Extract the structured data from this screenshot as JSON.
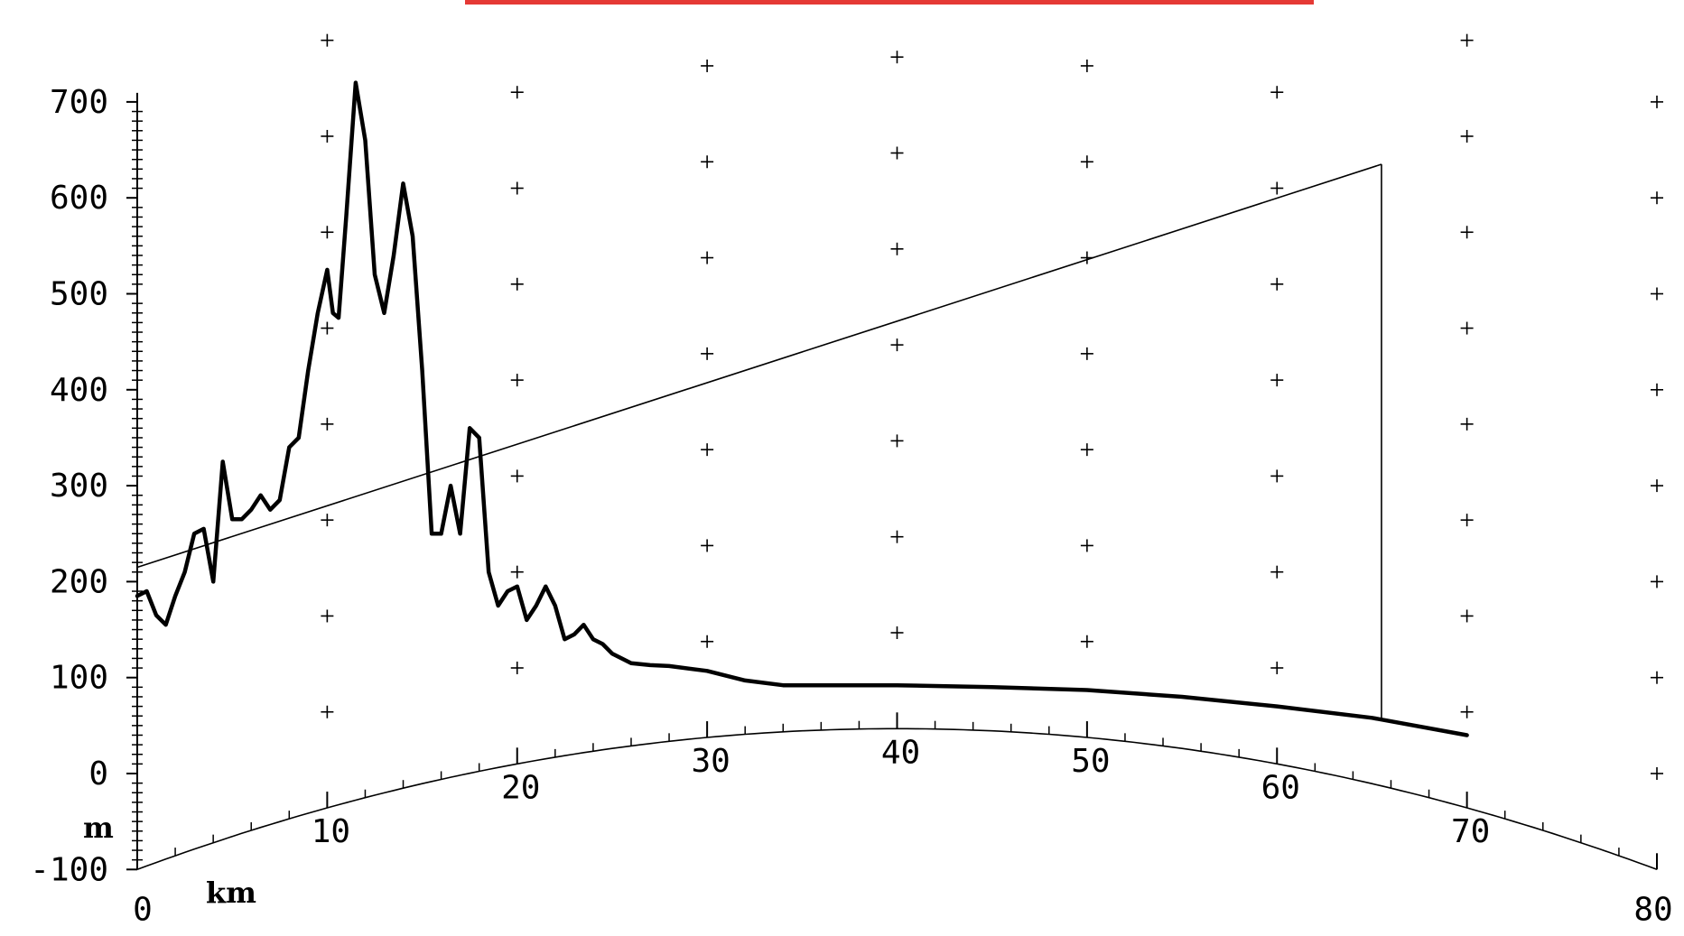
{
  "chart_data": {
    "type": "line",
    "title": "",
    "xlabel": "km",
    "ylabel": "m",
    "xlim": [
      0,
      80
    ],
    "ylim": [
      -100,
      700
    ],
    "x_ticks": [
      "0",
      "10",
      "20",
      "30",
      "40",
      "50",
      "60",
      "70",
      "80"
    ],
    "y_ticks": [
      "700",
      "600",
      "500",
      "400",
      "300",
      "200",
      "100",
      "0",
      "-100"
    ],
    "grid": "cross markers following earth curvature",
    "colors": {
      "line": "#000000",
      "accent_bar": "#e53935"
    },
    "series": [
      {
        "role": "terrain profile",
        "x": [
          0,
          0.5,
          1,
          1.5,
          2,
          2.5,
          3,
          3.5,
          4,
          4.5,
          5,
          5.5,
          6,
          6.5,
          7,
          7.5,
          8,
          8.5,
          9,
          9.5,
          10,
          10.3,
          10.6,
          11,
          11.5,
          12,
          12.5,
          13,
          13.5,
          14,
          14.5,
          15,
          15.5,
          16,
          16.5,
          17,
          17.5,
          18,
          18.5,
          19,
          19.5,
          20,
          20.5,
          21,
          21.5,
          22,
          22.5,
          23,
          23.5,
          24,
          24.5,
          25,
          26,
          27,
          28,
          30,
          32,
          34,
          36,
          40,
          45,
          50,
          55,
          60,
          65,
          70
        ],
        "y": [
          185,
          190,
          165,
          155,
          185,
          210,
          250,
          255,
          200,
          325,
          265,
          265,
          275,
          290,
          275,
          285,
          340,
          350,
          420,
          480,
          525,
          480,
          475,
          580,
          720,
          660,
          520,
          480,
          540,
          615,
          560,
          420,
          250,
          250,
          300,
          250,
          360,
          350,
          210,
          175,
          190,
          195,
          160,
          175,
          195,
          175,
          140,
          145,
          155,
          140,
          135,
          125,
          115,
          113,
          112,
          107,
          97,
          92,
          92,
          92,
          90,
          87,
          80,
          70,
          58,
          40
        ]
      },
      {
        "role": "line of sight",
        "x": [
          0,
          65.5
        ],
        "y": [
          215,
          635
        ]
      }
    ],
    "annotations": [
      {
        "type": "vertical line",
        "x": 65.5,
        "y_from": 58,
        "y_to": 635
      }
    ]
  }
}
